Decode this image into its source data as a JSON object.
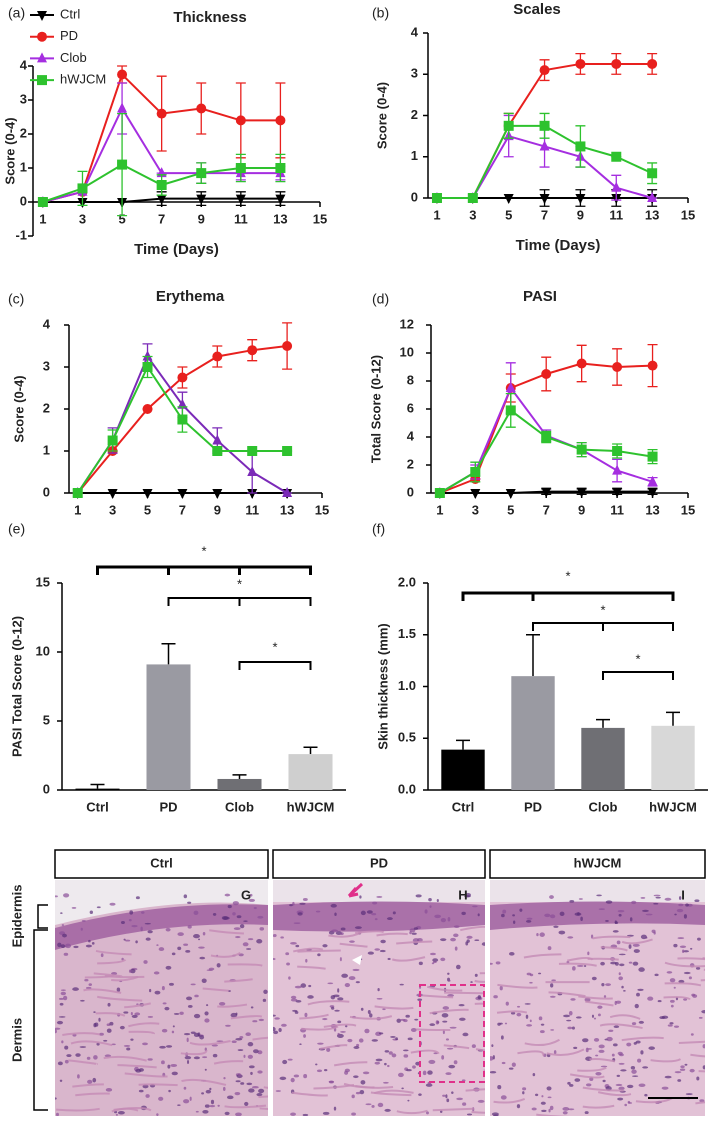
{
  "chart_data": [
    {
      "type": "line",
      "panel": "(a)",
      "title": "Thickness",
      "x_label": "Time (Days)",
      "y_label": "Score (0-4)",
      "x": [
        1,
        3,
        5,
        7,
        9,
        11,
        13
      ],
      "xlim": [
        0.5,
        15
      ],
      "xticks": [
        1,
        3,
        5,
        7,
        9,
        11,
        13,
        15
      ],
      "ylim": [
        -1,
        4
      ],
      "yticks": [
        -1,
        0,
        1,
        2,
        3,
        4
      ],
      "legend": "upper left",
      "series": [
        {
          "name": "Ctrl",
          "color": "#000000",
          "marker": "triangle-down",
          "values": [
            0,
            0,
            0,
            0.1,
            0.1,
            0.1,
            0.1
          ],
          "errors": [
            0,
            0,
            0,
            0.2,
            0.2,
            0.2,
            0.2
          ]
        },
        {
          "name": "PD",
          "color": "#e8201e",
          "marker": "circle",
          "values": [
            0,
            0.3,
            3.75,
            2.6,
            2.75,
            2.4,
            2.4
          ],
          "errors": [
            0,
            0,
            0.25,
            1.1,
            0.75,
            1.1,
            1.1
          ]
        },
        {
          "name": "Clob",
          "color": "#a52ee0",
          "marker": "triangle-up",
          "values": [
            0,
            0.3,
            2.75,
            0.85,
            0.85,
            0.85,
            0.85
          ],
          "errors": [
            0,
            0,
            0.75,
            0,
            0.3,
            0.2,
            0.2
          ]
        },
        {
          "name": "hWJCM",
          "color": "#2ec22e",
          "marker": "square",
          "values": [
            0,
            0.4,
            1.1,
            0.5,
            0.85,
            1,
            1
          ],
          "errors": [
            0,
            0.5,
            1.5,
            0.3,
            0.3,
            0.4,
            0.4
          ]
        }
      ]
    },
    {
      "type": "line",
      "panel": "(b)",
      "title": "Scales",
      "x_label": "Time (Days)",
      "y_label": "Score (0-4)",
      "x": [
        1,
        3,
        5,
        7,
        9,
        11,
        13
      ],
      "xlim": [
        0.5,
        15
      ],
      "xticks": [
        1,
        3,
        5,
        7,
        9,
        11,
        13,
        15
      ],
      "ylim": [
        0,
        4
      ],
      "yticks": [
        0,
        1,
        2,
        3,
        4
      ],
      "series": [
        {
          "color": "#000000",
          "marker": "triangle-down",
          "values": [
            0,
            0,
            0,
            0,
            0,
            0,
            0
          ],
          "errors": [
            0,
            0,
            0,
            0.2,
            0.2,
            0.2,
            0.2
          ]
        },
        {
          "color": "#e8201e",
          "marker": "circle",
          "values": [
            0,
            0,
            1.75,
            3.1,
            3.25,
            3.25,
            3.25
          ],
          "errors": [
            0,
            0,
            0.3,
            0.25,
            0.25,
            0.25,
            0.25
          ]
        },
        {
          "color": "#a52ee0",
          "marker": "triangle-up",
          "values": [
            0,
            0,
            1.5,
            1.25,
            1,
            0.25,
            0
          ],
          "errors": [
            0,
            0,
            0.5,
            0.5,
            0.25,
            0.3,
            0
          ]
        },
        {
          "color": "#2ec22e",
          "marker": "square",
          "values": [
            0,
            0,
            1.75,
            1.75,
            1.25,
            1,
            0.6
          ],
          "errors": [
            0,
            0,
            0.3,
            0.3,
            0.5,
            0,
            0.25
          ]
        }
      ]
    },
    {
      "type": "line",
      "panel": "(c)",
      "title": "Erythema",
      "y_label": "Score (0-4)",
      "x": [
        1,
        3,
        5,
        7,
        9,
        11,
        13
      ],
      "xlim": [
        0.5,
        15
      ],
      "xticks": [
        1,
        3,
        5,
        7,
        9,
        11,
        13,
        15
      ],
      "ylim": [
        0,
        4
      ],
      "yticks": [
        0,
        1,
        2,
        3,
        4
      ],
      "series": [
        {
          "color": "#000000",
          "marker": "triangle-down",
          "values": [
            0,
            0,
            0,
            0,
            0,
            0,
            0
          ],
          "errors": [
            0,
            0,
            0,
            0,
            0,
            0,
            0
          ]
        },
        {
          "color": "#e8201e",
          "marker": "circle",
          "values": [
            0,
            1,
            2,
            2.75,
            3.25,
            3.4,
            3.5
          ],
          "errors": [
            0,
            0,
            0,
            0.25,
            0.25,
            0.25,
            0.55
          ]
        },
        {
          "color": "#7b2ab8",
          "marker": "triangle-up",
          "values": [
            0,
            1.25,
            3.25,
            2.1,
            1.25,
            0.5,
            0
          ],
          "errors": [
            0,
            0.3,
            0.3,
            0.3,
            0.3,
            0.5,
            0
          ]
        },
        {
          "color": "#2ec22e",
          "marker": "square",
          "values": [
            0,
            1.25,
            3,
            1.75,
            1,
            1,
            1
          ],
          "errors": [
            0,
            0.25,
            0.25,
            0.3,
            0,
            0,
            0
          ]
        }
      ]
    },
    {
      "type": "line",
      "panel": "(d)",
      "title": "PASI",
      "y_label": "Total Score (0-12)",
      "x": [
        1,
        3,
        5,
        7,
        9,
        11,
        13
      ],
      "xlim": [
        0.5,
        15
      ],
      "xticks": [
        1,
        3,
        5,
        7,
        9,
        11,
        13,
        15
      ],
      "ylim": [
        0,
        12
      ],
      "yticks": [
        0,
        2,
        4,
        6,
        8,
        10,
        12
      ],
      "series": [
        {
          "color": "#000000",
          "marker": "triangle-down",
          "values": [
            0,
            0,
            0,
            0.1,
            0.1,
            0.1,
            0.1
          ],
          "errors": [
            0,
            0,
            0,
            0.2,
            0.2,
            0.2,
            0.2
          ]
        },
        {
          "color": "#e8201e",
          "marker": "circle",
          "values": [
            0,
            1,
            7.5,
            8.5,
            9.25,
            9,
            9.1
          ],
          "errors": [
            0,
            0,
            1,
            1.2,
            1.3,
            1.3,
            1.5
          ]
        },
        {
          "color": "#a52ee0",
          "marker": "triangle-up",
          "values": [
            0,
            1.5,
            7.5,
            4.1,
            3.1,
            1.6,
            0.8
          ],
          "errors": [
            0,
            0.5,
            1.8,
            0.4,
            0.5,
            0.8,
            0.3
          ]
        },
        {
          "color": "#2ec22e",
          "marker": "square",
          "values": [
            0,
            1.5,
            5.9,
            4,
            3.1,
            3,
            2.6
          ],
          "errors": [
            0,
            0.7,
            1.2,
            0.4,
            0.5,
            0.5,
            0.5
          ]
        }
      ]
    },
    {
      "type": "bar",
      "panel": "(e)",
      "y_label": "PASI Total Score (0-12)",
      "categories": [
        "Ctrl",
        "PD",
        "Clob",
        "hWJCM"
      ],
      "values": [
        0.1,
        9.1,
        0.8,
        2.6
      ],
      "errors": [
        0.3,
        1.5,
        0.3,
        0.5
      ],
      "colors": [
        "#000000",
        "#9a9aa2",
        "#6f6f74",
        "#cfcfcf"
      ],
      "ylim": [
        0,
        15
      ],
      "yticks": [
        0,
        5,
        10,
        15
      ],
      "annotations": [
        "*",
        "*",
        "*"
      ]
    },
    {
      "type": "bar",
      "panel": "(f)",
      "y_label": "Skin thickness (mm)",
      "categories": [
        "Ctrl",
        "PD",
        "Clob",
        "hWJCM"
      ],
      "values": [
        0.39,
        1.1,
        0.6,
        0.62
      ],
      "errors": [
        0.09,
        0.4,
        0.08,
        0.13
      ],
      "colors": [
        "#000000",
        "#9a9aa2",
        "#6f6f74",
        "#d8d8d8"
      ],
      "ylim": [
        0,
        2
      ],
      "yticks": [
        {
          "value": 0,
          "label": "0.0"
        },
        {
          "value": 0.5,
          "label": "0.5"
        },
        {
          "value": 1,
          "label": "1.0"
        },
        {
          "value": 1.5,
          "label": "1.5"
        },
        {
          "value": 2,
          "label": "2.0"
        }
      ],
      "annotations": [
        "*",
        "*",
        "*"
      ]
    }
  ],
  "histology": {
    "headers": [
      "Ctrl",
      "PD",
      "hWJCM"
    ],
    "letters": [
      "G",
      "H",
      "I"
    ],
    "layers": [
      "Epidermis",
      "Dermis"
    ]
  }
}
